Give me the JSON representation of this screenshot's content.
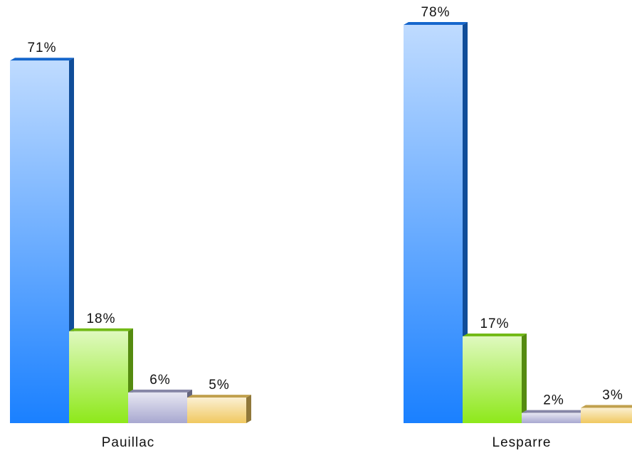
{
  "chart_data": {
    "type": "bar",
    "categories": [
      "Pauillac",
      "Lesparre"
    ],
    "series": [
      {
        "color": "#1a80ff",
        "values": [
          71,
          78
        ],
        "value_labels": [
          "71%",
          "78%"
        ]
      },
      {
        "color": "#8ee81a",
        "values": [
          18,
          17
        ],
        "value_labels": [
          "18%",
          "17%"
        ]
      },
      {
        "color": "#a8a8d0",
        "values": [
          6,
          2
        ],
        "value_labels": [
          "6%",
          "2%"
        ]
      },
      {
        "color": "#f0c860",
        "values": [
          5,
          3
        ],
        "value_labels": [
          "5%",
          "3%"
        ]
      }
    ]
  }
}
